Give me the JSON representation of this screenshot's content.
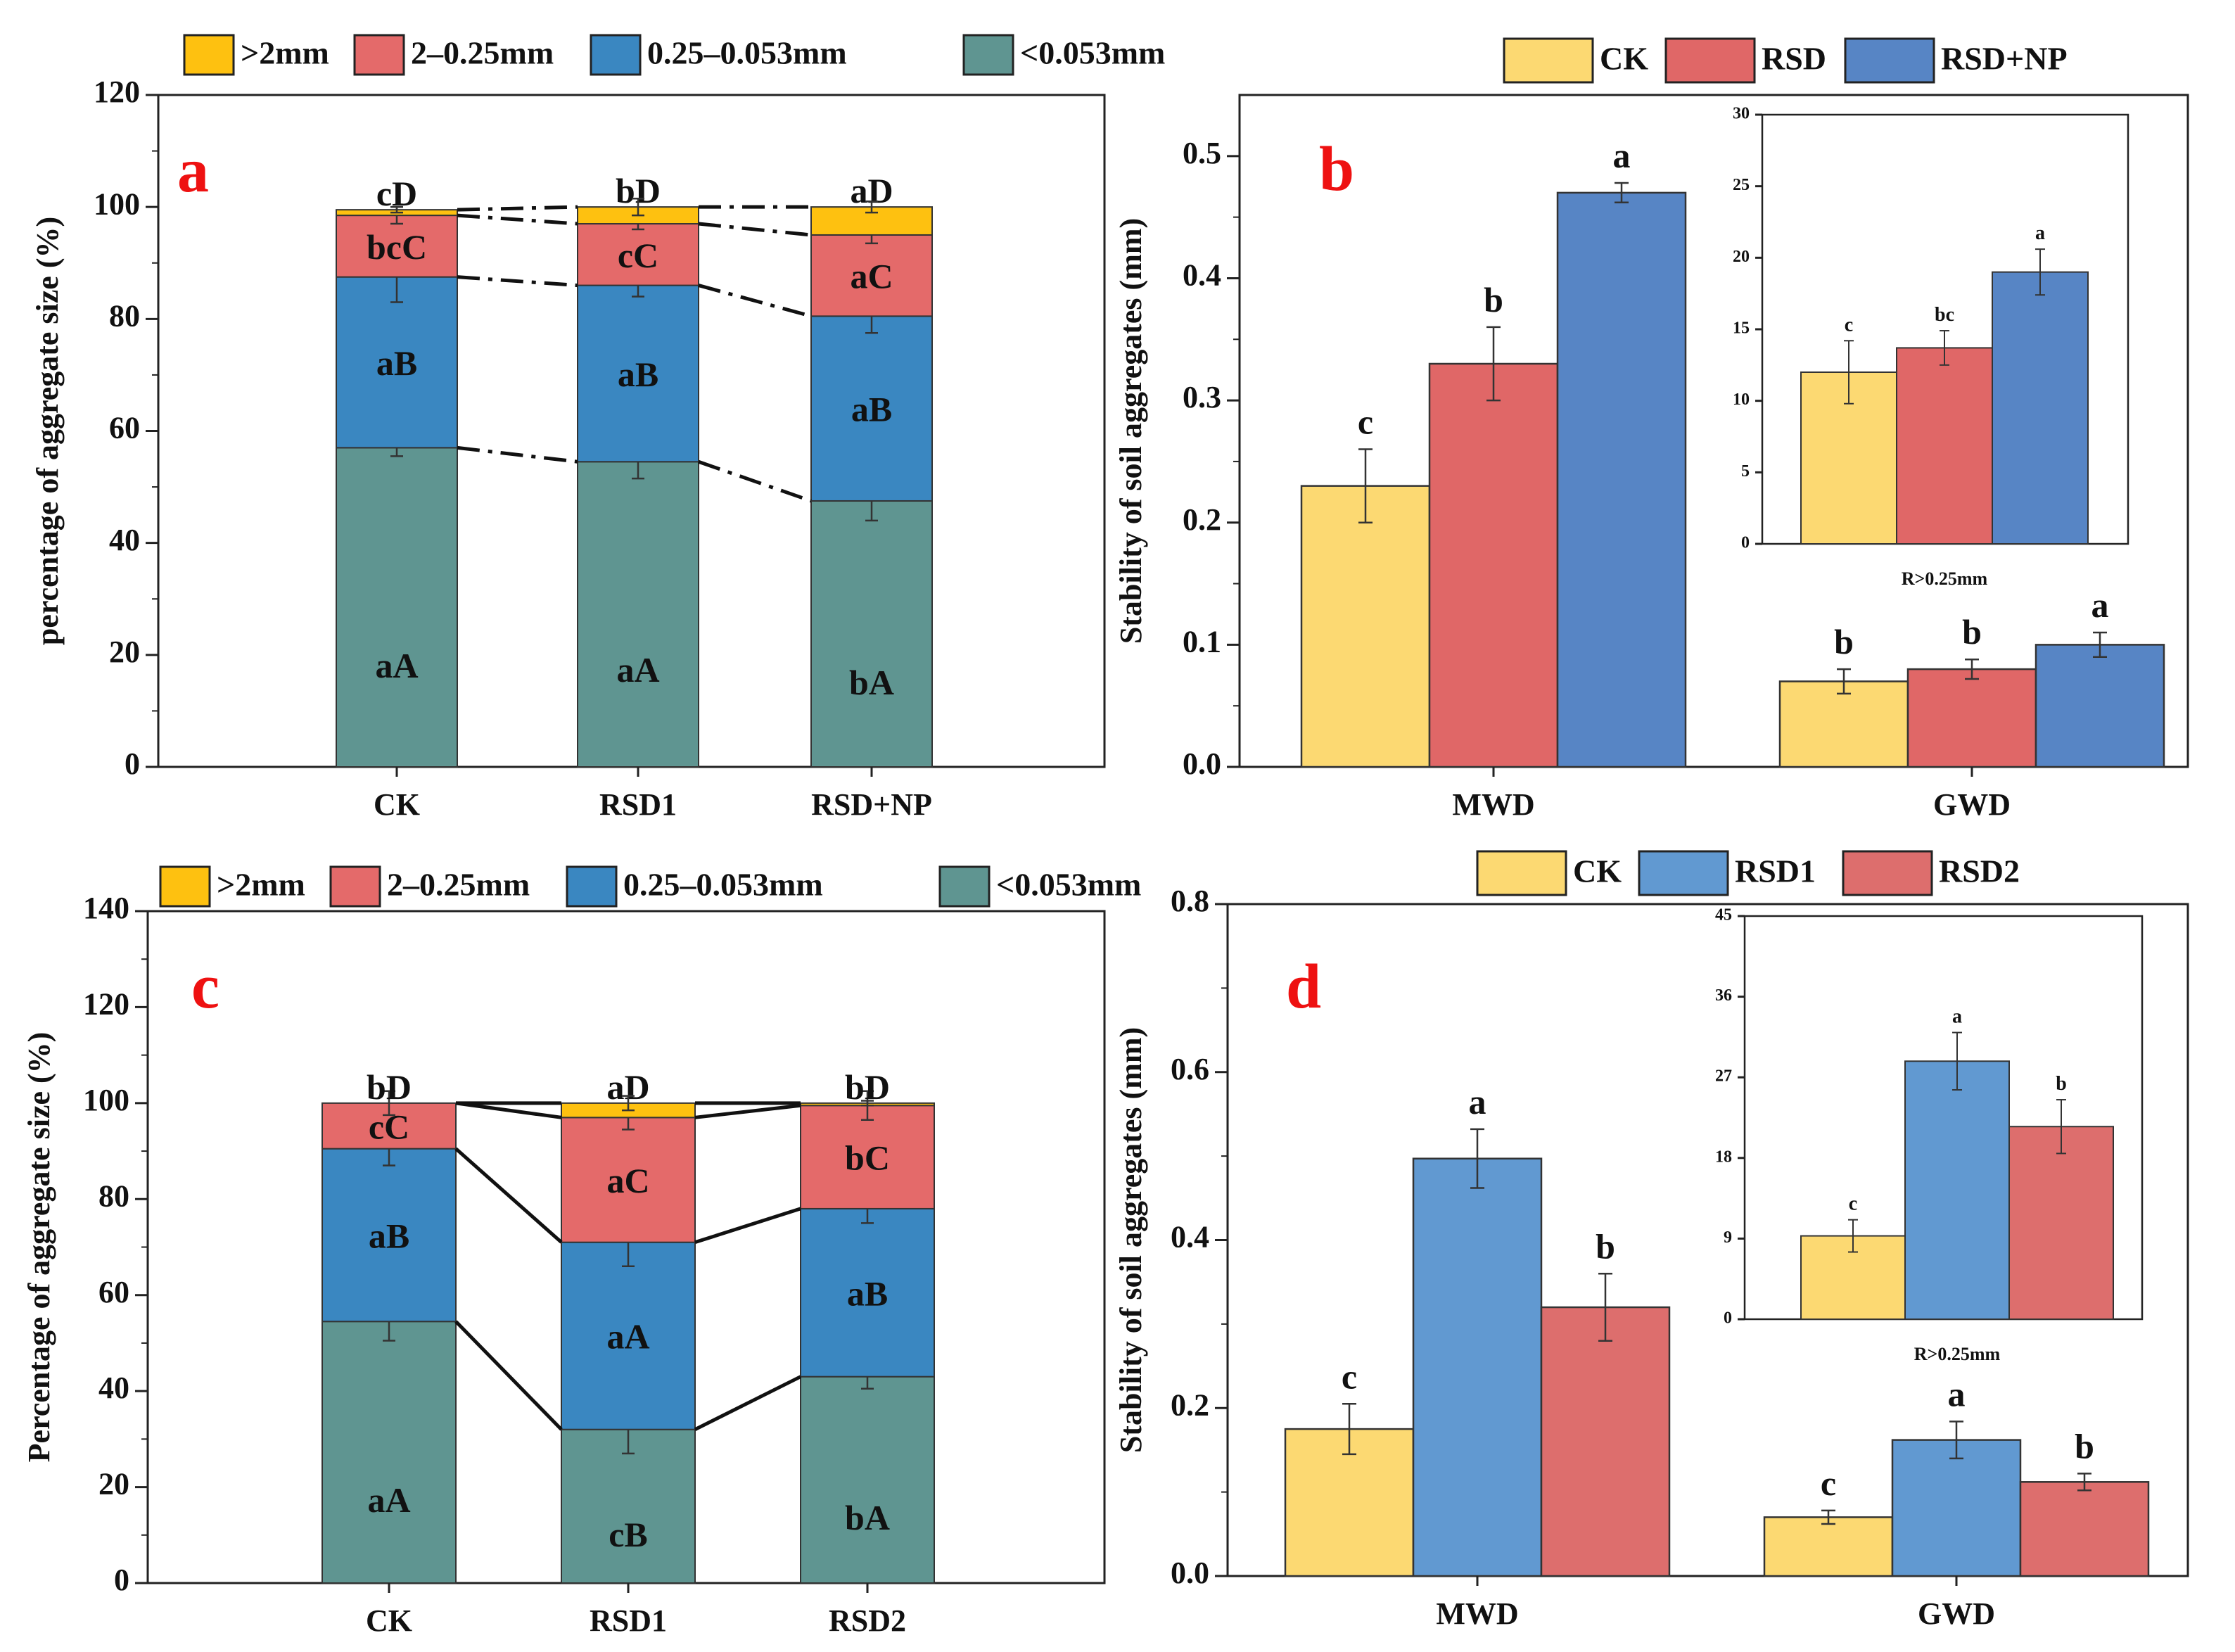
{
  "colors": {
    "gt2": "#fec110",
    "mid": "#e46a6a",
    "small": "#3a87c1",
    "lt": "#5f9591",
    "ck": "#fcd972",
    "rsd": "#e06767",
    "rsdnp": "#5785c5",
    "rsd1_d": "#6199d1",
    "rsd2_d": "#dd6e6d",
    "panel_label": "#ee1111"
  },
  "chart_data": [
    {
      "panel": "a",
      "type": "bar",
      "stacked": true,
      "ylabel": "percentage of aggregate size (%)",
      "ylim": [
        0,
        120
      ],
      "yticks": [
        "0",
        "20",
        "40",
        "60",
        "80",
        "100",
        "120"
      ],
      "categories": [
        "CK",
        "RSD1",
        "RSD+NP"
      ],
      "legend": [
        ">2mm",
        "2–0.25mm",
        "0.25–0.053mm",
        "<0.053mm"
      ],
      "series": [
        {
          "name": "<0.053mm",
          "values": [
            57,
            54.5,
            47.5
          ],
          "err": [
            1.5,
            3,
            3.5
          ],
          "labels": [
            "aA",
            "aA",
            "bA"
          ]
        },
        {
          "name": "0.25–0.053mm",
          "values": [
            30.5,
            31.5,
            33
          ],
          "err": [
            4.5,
            2,
            3
          ],
          "labels": [
            "aB",
            "aB",
            "aB"
          ]
        },
        {
          "name": "2–0.25mm",
          "values": [
            11,
            11,
            14.5
          ],
          "err": [
            1.5,
            1,
            1.5
          ],
          "labels": [
            "bcC",
            "cC",
            "aC"
          ]
        },
        {
          "name": ">2mm",
          "values": [
            1,
            3,
            5
          ],
          "err": [
            0.5,
            1.5,
            1
          ],
          "labels": [
            "cD",
            "bD",
            "aD"
          ]
        }
      ]
    },
    {
      "panel": "b",
      "type": "bar",
      "ylabel": "Stability of soil aggregates (mm)",
      "ylim": [
        0,
        0.55
      ],
      "yticks": [
        "0.0",
        "0.1",
        "0.2",
        "0.3",
        "0.4",
        "0.5"
      ],
      "categories": [
        "MWD",
        "GWD"
      ],
      "legend": [
        "CK",
        "RSD",
        "RSD+NP"
      ],
      "series": [
        {
          "name": "CK",
          "values": [
            0.23,
            0.07
          ],
          "err": [
            0.03,
            0.01
          ],
          "sig": [
            "c",
            "b"
          ]
        },
        {
          "name": "RSD",
          "values": [
            0.33,
            0.08
          ],
          "err": [
            0.03,
            0.008
          ],
          "sig": [
            "b",
            "b"
          ]
        },
        {
          "name": "RSD+NP",
          "values": [
            0.47,
            0.1
          ],
          "err": [
            0.008,
            0.01
          ],
          "sig": [
            "a",
            "a"
          ]
        }
      ],
      "inset": {
        "xlabel": "R>0.25mm",
        "ylim": [
          0,
          30
        ],
        "yticks": [
          "0",
          "5",
          "10",
          "15",
          "20",
          "25",
          "30"
        ],
        "values": [
          12,
          13.7,
          19
        ],
        "err": [
          2.2,
          1.2,
          1.6
        ],
        "sig": [
          "c",
          "bc",
          "a"
        ]
      }
    },
    {
      "panel": "c",
      "type": "bar",
      "stacked": true,
      "ylabel": "Percentage of aggregate size (%)",
      "ylim": [
        0,
        140
      ],
      "yticks": [
        "0",
        "20",
        "40",
        "60",
        "80",
        "100",
        "120",
        "140"
      ],
      "categories": [
        "CK",
        "RSD1",
        "RSD2"
      ],
      "legend": [
        ">2mm",
        "2–0.25mm",
        "0.25–0.053mm",
        "<0.053mm"
      ],
      "series": [
        {
          "name": "<0.053mm",
          "values": [
            54.5,
            32,
            43
          ],
          "err": [
            4,
            5,
            2.5
          ],
          "labels": [
            "aA",
            "cB",
            "bA"
          ]
        },
        {
          "name": "0.25–0.053mm",
          "values": [
            36,
            39,
            35
          ],
          "err": [
            3.5,
            5,
            3
          ],
          "labels": [
            "aB",
            "aA",
            "aB"
          ]
        },
        {
          "name": "2–0.25mm",
          "values": [
            9.5,
            26,
            21.5
          ],
          "err": [
            2.5,
            2.5,
            3
          ],
          "labels": [
            "cC",
            "aC",
            "bC"
          ]
        },
        {
          "name": ">2mm",
          "values": [
            0,
            3,
            0.5
          ],
          "err": [
            0,
            1.5,
            0.5
          ],
          "labels": [
            "bD",
            "aD",
            "bD"
          ]
        }
      ]
    },
    {
      "panel": "d",
      "type": "bar",
      "ylabel": "Stability of soil aggregates (mm)",
      "ylim": [
        0,
        0.8
      ],
      "yticks": [
        "0.0",
        "0.2",
        "0.4",
        "0.6",
        "0.8"
      ],
      "categories": [
        "MWD",
        "GWD"
      ],
      "legend": [
        "CK",
        "RSD1",
        "RSD2"
      ],
      "series": [
        {
          "name": "CK",
          "values": [
            0.175,
            0.07
          ],
          "err": [
            0.03,
            0.008
          ],
          "sig": [
            "c",
            "c"
          ]
        },
        {
          "name": "RSD1",
          "values": [
            0.497,
            0.162
          ],
          "err": [
            0.035,
            0.022
          ],
          "sig": [
            "a",
            "a"
          ]
        },
        {
          "name": "RSD2",
          "values": [
            0.32,
            0.112
          ],
          "err": [
            0.04,
            0.01
          ],
          "sig": [
            "b",
            "b"
          ]
        }
      ],
      "inset": {
        "xlabel": "R>0.25mm",
        "ylim": [
          0,
          45
        ],
        "yticks": [
          "0",
          "9",
          "18",
          "27",
          "36",
          "45"
        ],
        "values": [
          9.3,
          28.8,
          21.5
        ],
        "err": [
          1.8,
          3.2,
          3
        ],
        "sig": [
          "c",
          "a",
          "b"
        ]
      }
    }
  ]
}
